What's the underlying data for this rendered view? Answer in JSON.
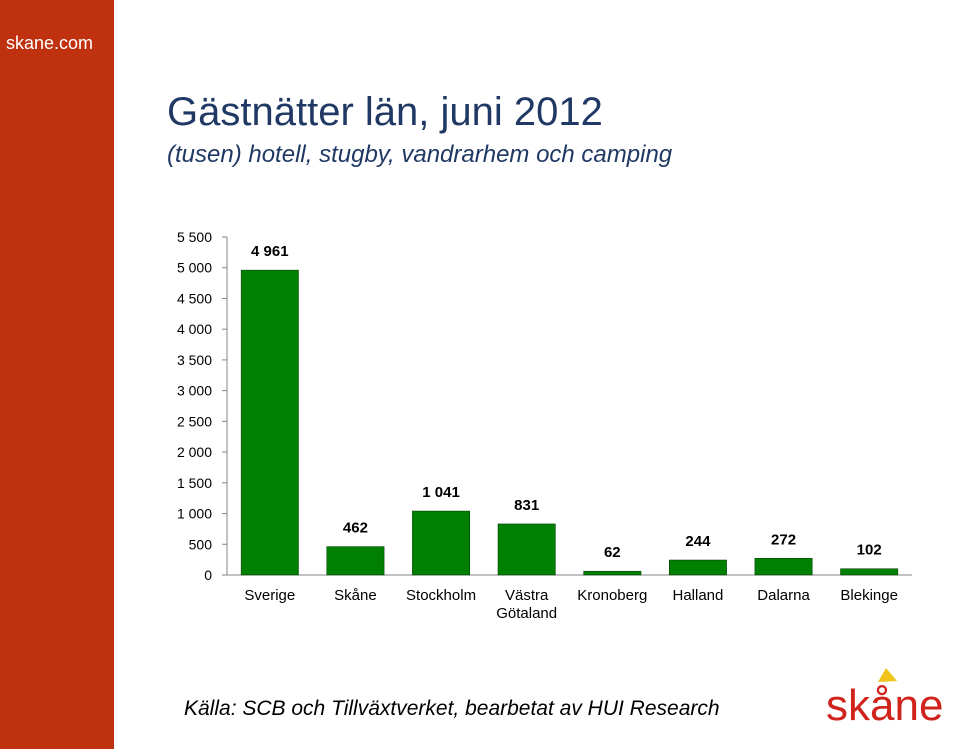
{
  "site": "skane.com",
  "title": "Gästnätter län, juni 2012",
  "subtitle": "(tusen) hotell, stugby, vandrarhem och camping",
  "source": "Källa: SCB och Tillväxtverket, bearbetat av HUI Research",
  "logo_text": "skåne",
  "colors": {
    "sidebar": "#c0310f",
    "bar": "#008000",
    "title": "#1f3864",
    "logo": "#d0231b"
  },
  "chart_data": {
    "type": "bar",
    "categories": [
      "Sverige",
      "Skåne",
      "Stockholm",
      "Västra Götaland",
      "Kronoberg",
      "Halland",
      "Dalarna",
      "Blekinge"
    ],
    "category_lines": [
      [
        "Sverige"
      ],
      [
        "Skåne"
      ],
      [
        "Stockholm"
      ],
      [
        "Västra",
        "Götaland"
      ],
      [
        "Kronoberg"
      ],
      [
        "Halland"
      ],
      [
        "Dalarna"
      ],
      [
        "Blekinge"
      ]
    ],
    "values": [
      4961,
      462,
      1041,
      831,
      62,
      244,
      272,
      102
    ],
    "data_labels": [
      "4 961",
      "462",
      "1 041",
      "831",
      "62",
      "244",
      "272",
      "102"
    ],
    "ylim": [
      0,
      5500
    ],
    "yticks": [
      0,
      500,
      1000,
      1500,
      2000,
      2500,
      3000,
      3500,
      4000,
      4500,
      5000,
      5500
    ],
    "ytick_labels": [
      "0",
      "500",
      "1 000",
      "1 500",
      "2 000",
      "2 500",
      "3 000",
      "3 500",
      "4 000",
      "4 500",
      "5 000",
      "5 500"
    ],
    "grid": false,
    "legend": "none"
  }
}
